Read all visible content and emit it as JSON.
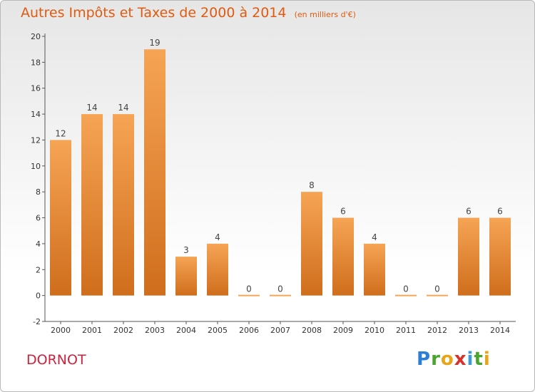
{
  "header": {
    "title": "Autres Impôts et Taxes de 2000 à 2014",
    "unit": "(en milliers d'€)"
  },
  "footer": {
    "place": "DORNOT",
    "brand_letters": [
      {
        "ch": "P",
        "color": "#2a7fd4"
      },
      {
        "ch": "r",
        "color": "#4aa52e"
      },
      {
        "ch": "o",
        "color": "#e8a517"
      },
      {
        "ch": "x",
        "color": "#d6332a"
      },
      {
        "ch": "i",
        "color": "#3b9bd8"
      },
      {
        "ch": "t",
        "color": "#4aa52e"
      },
      {
        "ch": "i",
        "color": "#e8a517"
      }
    ]
  },
  "chart_data": {
    "type": "bar",
    "categories": [
      "2000",
      "2001",
      "2002",
      "2003",
      "2004",
      "2005",
      "2006",
      "2007",
      "2008",
      "2009",
      "2010",
      "2011",
      "2012",
      "2013",
      "2014"
    ],
    "values": [
      12,
      14,
      14,
      19,
      3,
      4,
      0,
      0,
      8,
      6,
      4,
      0,
      0,
      6,
      6
    ],
    "ylim": [
      -2,
      20
    ],
    "yticks": [
      -2,
      0,
      2,
      4,
      6,
      8,
      10,
      12,
      14,
      16,
      18,
      20
    ],
    "grid": false,
    "bar_color_top": "#f6a455",
    "bar_color_bottom": "#cf6e1c",
    "title_color": "#e05a10",
    "place_color": "#d0213c"
  }
}
